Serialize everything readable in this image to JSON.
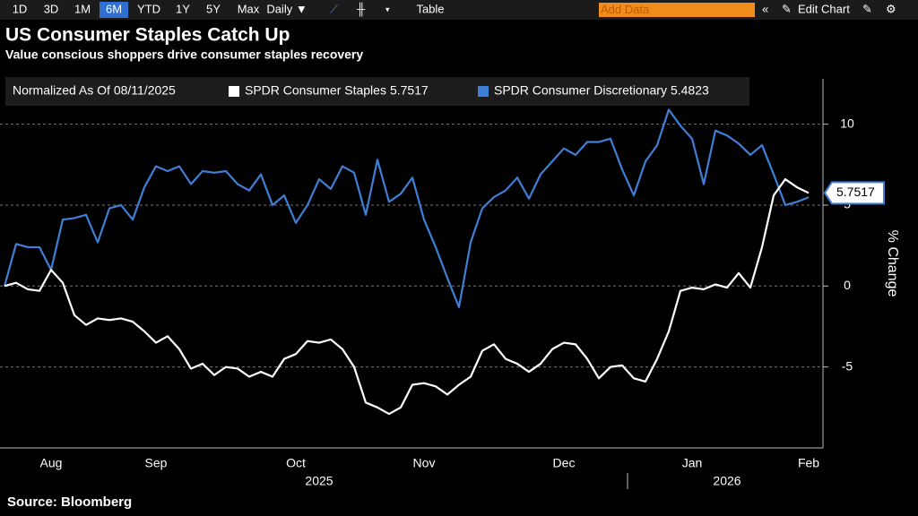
{
  "toolbar": {
    "buttons": [
      "1D",
      "3D",
      "1M",
      "6M",
      "YTD",
      "1Y",
      "5Y",
      "Max",
      "Daily ▼",
      "Table"
    ],
    "active": "6M",
    "search_placeholder": "Add Data",
    "edit": "Edit Chart"
  },
  "chart_data": {
    "type": "line",
    "title": "US Consumer Staples Catch Up",
    "subtitle": "Value conscious shoppers drive consumer staples recovery",
    "legend_title": "Normalized As Of 08/11/2025",
    "y_label": "% Change",
    "source": "Source: Bloomberg",
    "categories": [
      null,
      null,
      null,
      null,
      "Aug",
      null,
      null,
      null,
      null,
      null,
      null,
      null,
      null,
      "Sep",
      null,
      null,
      null,
      null,
      null,
      null,
      null,
      null,
      null,
      null,
      null,
      "Oct",
      null,
      null,
      null,
      null,
      null,
      null,
      null,
      null,
      null,
      null,
      "Nov",
      null,
      null,
      null,
      null,
      null,
      null,
      null,
      null,
      null,
      null,
      null,
      "Dec",
      null,
      null,
      null,
      null,
      null,
      null,
      null,
      null,
      null,
      null,
      "Jan",
      null,
      null,
      null,
      null,
      null,
      null,
      null,
      null,
      null,
      "Feb"
    ],
    "year_categories": [
      null,
      null,
      null,
      null,
      null,
      null,
      null,
      null,
      null,
      null,
      null,
      null,
      null,
      null,
      null,
      null,
      null,
      null,
      null,
      null,
      null,
      null,
      null,
      null,
      null,
      null,
      null,
      "2025",
      null,
      null,
      null,
      null,
      null,
      null,
      null,
      null,
      null,
      null,
      null,
      null,
      null,
      null,
      null,
      null,
      null,
      null,
      null,
      null,
      null,
      null,
      null,
      null,
      null,
      null,
      null,
      null,
      null,
      null,
      null,
      null,
      null,
      null,
      "2026",
      null,
      null,
      null,
      null,
      null,
      null,
      null
    ],
    "series": [
      {
        "name": "SPDR Consumer Staples",
        "color": "#ffffff",
        "values": [
          0.0,
          0.2,
          -0.2,
          -0.3,
          1.0,
          0.2,
          -1.8,
          -2.4,
          -2.0,
          -2.1,
          -2.0,
          -2.2,
          -2.8,
          -3.5,
          -3.1,
          -3.9,
          -5.1,
          -4.8,
          -5.5,
          -5.0,
          -5.1,
          -5.6,
          -5.3,
          -5.6,
          -4.5,
          -4.2,
          -3.4,
          -3.5,
          -3.3,
          -3.9,
          -5.0,
          -7.2,
          -7.5,
          -7.9,
          -7.5,
          -6.1,
          -6.0,
          -6.2,
          -6.7,
          -6.1,
          -5.6,
          -4.0,
          -3.6,
          -4.5,
          -4.8,
          -5.3,
          -4.8,
          -3.9,
          -3.5,
          -3.6,
          -4.5,
          -5.7,
          -5.0,
          -4.9,
          -5.7,
          -5.9,
          -4.5,
          -2.8,
          -0.3,
          -0.1,
          -0.2,
          0.1,
          -0.1,
          0.8,
          -0.1,
          2.4,
          5.6,
          6.6,
          6.1,
          5.7517
        ]
      },
      {
        "name": "SPDR Consumer Discretionary",
        "color": "#3f7fd6",
        "values": [
          0.0,
          2.6,
          2.4,
          2.4,
          1.0,
          4.1,
          4.2,
          4.4,
          2.7,
          4.8,
          5.0,
          4.1,
          6.1,
          7.4,
          7.1,
          7.4,
          6.3,
          7.1,
          7.0,
          7.1,
          6.3,
          5.9,
          6.9,
          5.0,
          5.6,
          3.9,
          5.0,
          6.6,
          6.0,
          7.4,
          7.0,
          4.4,
          7.8,
          5.2,
          5.7,
          6.7,
          4.1,
          2.4,
          0.5,
          -1.3,
          2.7,
          4.8,
          5.5,
          5.9,
          6.7,
          5.4,
          6.9,
          7.7,
          8.5,
          8.1,
          8.9,
          8.9,
          9.1,
          7.2,
          5.6,
          7.7,
          8.7,
          10.9,
          9.9,
          9.1,
          6.3,
          9.6,
          9.3,
          8.8,
          8.1,
          8.7,
          6.9,
          5.0,
          5.2,
          5.4823
        ]
      }
    ],
    "ylim": [
      -10,
      12.8
    ],
    "yticks": [
      -5,
      0,
      5,
      10
    ],
    "grid": true
  }
}
